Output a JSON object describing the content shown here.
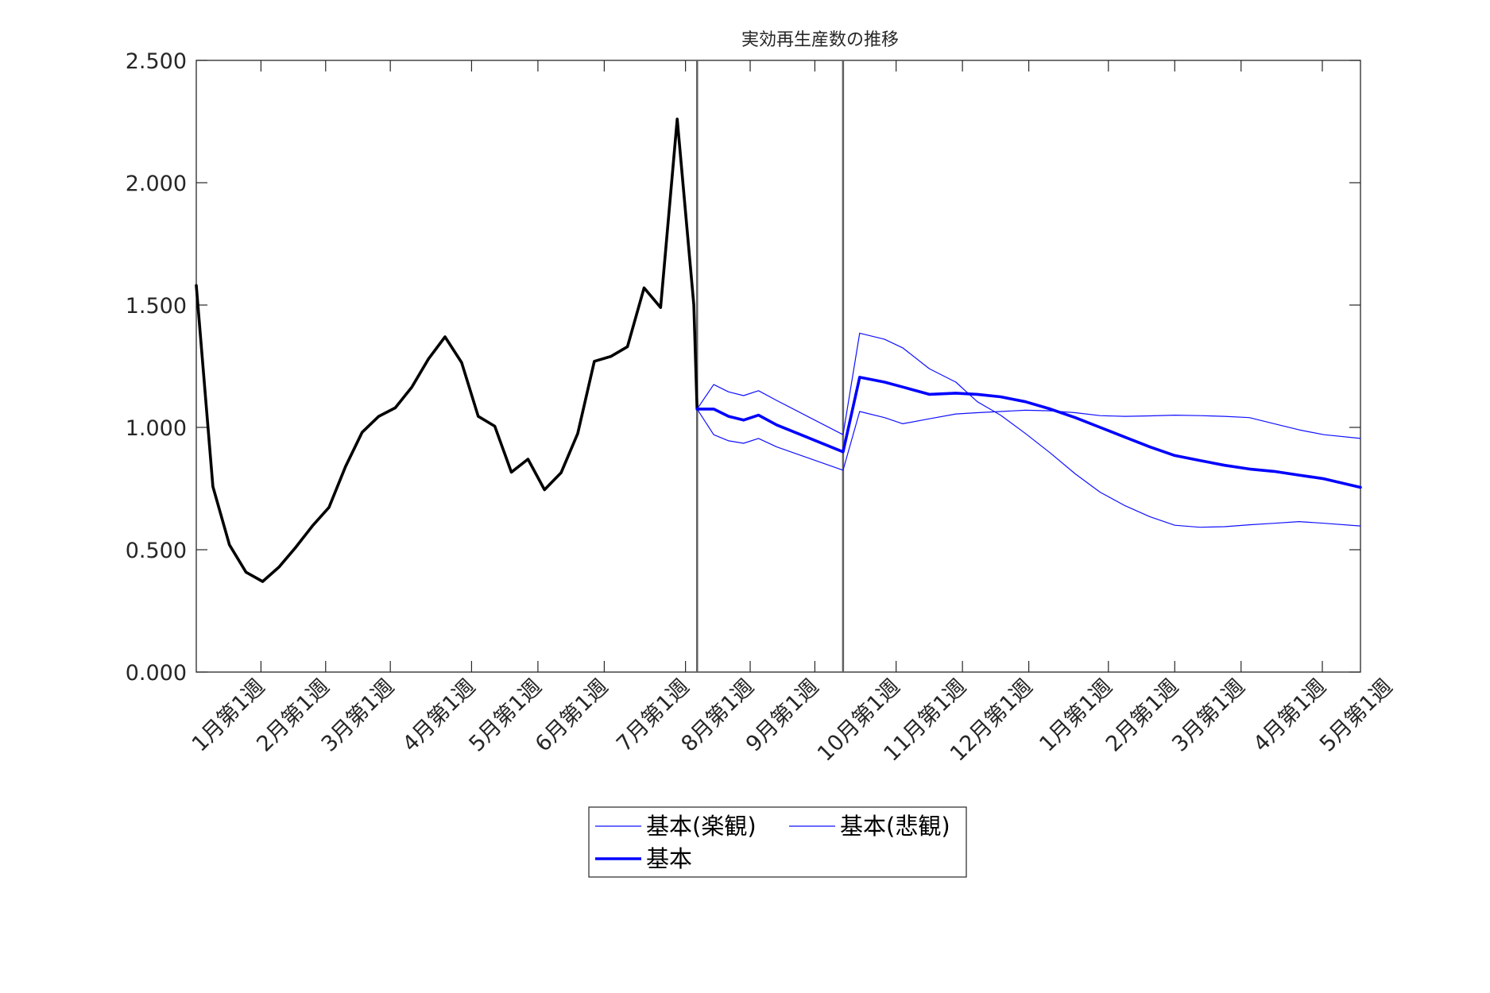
{
  "chart_data": {
    "type": "line",
    "title": "実効再生産数の推移",
    "xlabel": "",
    "ylabel": "",
    "ylim": [
      0,
      2.5
    ],
    "xlim": [
      0,
      70.2
    ],
    "yticks": [
      0,
      0.5,
      1.0,
      1.5,
      2.0,
      2.5
    ],
    "ytick_labels": [
      "0.000",
      "0.500",
      "1.000",
      "1.500",
      "2.000",
      "2.500"
    ],
    "xticks": [
      {
        "x": 3.9,
        "label": "1月第1週"
      },
      {
        "x": 7.8,
        "label": "2月第1週"
      },
      {
        "x": 11.7,
        "label": "3月第1週"
      },
      {
        "x": 16.6,
        "label": "4月第1週"
      },
      {
        "x": 20.6,
        "label": "5月第1週"
      },
      {
        "x": 24.6,
        "label": "6月第1週"
      },
      {
        "x": 29.5,
        "label": "7月第1週"
      },
      {
        "x": 33.4,
        "label": "8月第1週"
      },
      {
        "x": 37.3,
        "label": "9月第1週"
      },
      {
        "x": 42.2,
        "label": "10月第1週"
      },
      {
        "x": 46.2,
        "label": "11月第1週"
      },
      {
        "x": 50.2,
        "label": "12月第1週"
      },
      {
        "x": 55.0,
        "label": "1月第1週"
      },
      {
        "x": 59.0,
        "label": "2月第1週"
      },
      {
        "x": 63.0,
        "label": "3月第1週"
      },
      {
        "x": 67.9,
        "label": "4月第1週"
      },
      {
        "x": 71.9,
        "label": "5月第1週"
      }
    ],
    "vlines": [
      30.2,
      39.0
    ],
    "grid": false,
    "legend_position": "bottom-center",
    "series": [
      {
        "name": "",
        "color": "#000000",
        "width": "thick",
        "in_legend": false,
        "x": [
          0,
          1,
          2,
          3,
          4,
          5,
          6,
          7,
          8,
          9,
          10,
          11,
          12,
          13,
          14,
          15,
          16,
          17,
          18,
          19,
          20,
          21,
          22,
          23,
          24,
          25,
          26,
          27,
          28,
          29,
          30,
          30.2
        ],
        "y": [
          1.58,
          0.758,
          0.52,
          0.408,
          0.37,
          0.43,
          0.51,
          0.597,
          0.673,
          0.84,
          0.98,
          1.045,
          1.08,
          1.165,
          1.28,
          1.37,
          1.265,
          1.045,
          1.005,
          0.817,
          0.87,
          0.745,
          0.815,
          0.975,
          1.27,
          1.29,
          1.33,
          1.57,
          1.49,
          2.26,
          1.5,
          1.075
        ]
      },
      {
        "name": "基本(楽観)",
        "color": "#1010ff",
        "width": "thin",
        "in_legend": true,
        "x": [
          30.2,
          31.2,
          32.1,
          33.0,
          33.9,
          35.0,
          39.0,
          40.0,
          41.5,
          42.6,
          44.2,
          45.8,
          47.1,
          48.5,
          50.0,
          51.5,
          53.0,
          54.5,
          56.0,
          57.5,
          59.0,
          60.5,
          62.0,
          63.5,
          65.0,
          66.5,
          68.0,
          70.2
        ],
        "y": [
          1.075,
          1.175,
          1.145,
          1.13,
          1.15,
          1.11,
          0.97,
          1.385,
          1.36,
          1.325,
          1.24,
          1.185,
          1.105,
          1.05,
          0.975,
          0.895,
          0.81,
          0.735,
          0.68,
          0.635,
          0.6,
          0.592,
          0.594,
          0.602,
          0.608,
          0.615,
          0.608,
          0.597
        ]
      },
      {
        "name": "基本(悲観)",
        "color": "#1010ff",
        "width": "thin",
        "in_legend": true,
        "x": [
          30.2,
          31.2,
          32.1,
          33.0,
          33.9,
          35.0,
          39.0,
          40.0,
          41.5,
          42.6,
          44.2,
          45.8,
          47.1,
          48.5,
          50.0,
          51.5,
          53.0,
          54.5,
          56.0,
          57.5,
          59.0,
          60.5,
          62.0,
          63.5,
          65.0,
          66.5,
          68.0,
          70.2
        ],
        "y": [
          1.075,
          0.97,
          0.945,
          0.935,
          0.955,
          0.92,
          0.825,
          1.065,
          1.04,
          1.015,
          1.035,
          1.055,
          1.06,
          1.065,
          1.07,
          1.068,
          1.06,
          1.048,
          1.045,
          1.047,
          1.05,
          1.048,
          1.045,
          1.04,
          1.015,
          0.99,
          0.97,
          0.955
        ]
      },
      {
        "name": "基本",
        "color": "#0000ff",
        "width": "thick",
        "in_legend": true,
        "x": [
          30.2,
          31.2,
          32.1,
          33.0,
          33.9,
          35.0,
          39.0,
          40.0,
          41.5,
          42.6,
          44.2,
          45.8,
          47.1,
          48.5,
          50.0,
          51.5,
          53.0,
          54.5,
          56.0,
          57.5,
          59.0,
          60.5,
          62.0,
          63.5,
          65.0,
          66.5,
          68.0,
          70.2
        ],
        "y": [
          1.075,
          1.075,
          1.045,
          1.03,
          1.05,
          1.01,
          0.9,
          1.205,
          1.185,
          1.165,
          1.135,
          1.14,
          1.135,
          1.125,
          1.105,
          1.075,
          1.04,
          1.0,
          0.96,
          0.92,
          0.885,
          0.865,
          0.845,
          0.83,
          0.82,
          0.805,
          0.79,
          0.755
        ]
      }
    ]
  }
}
